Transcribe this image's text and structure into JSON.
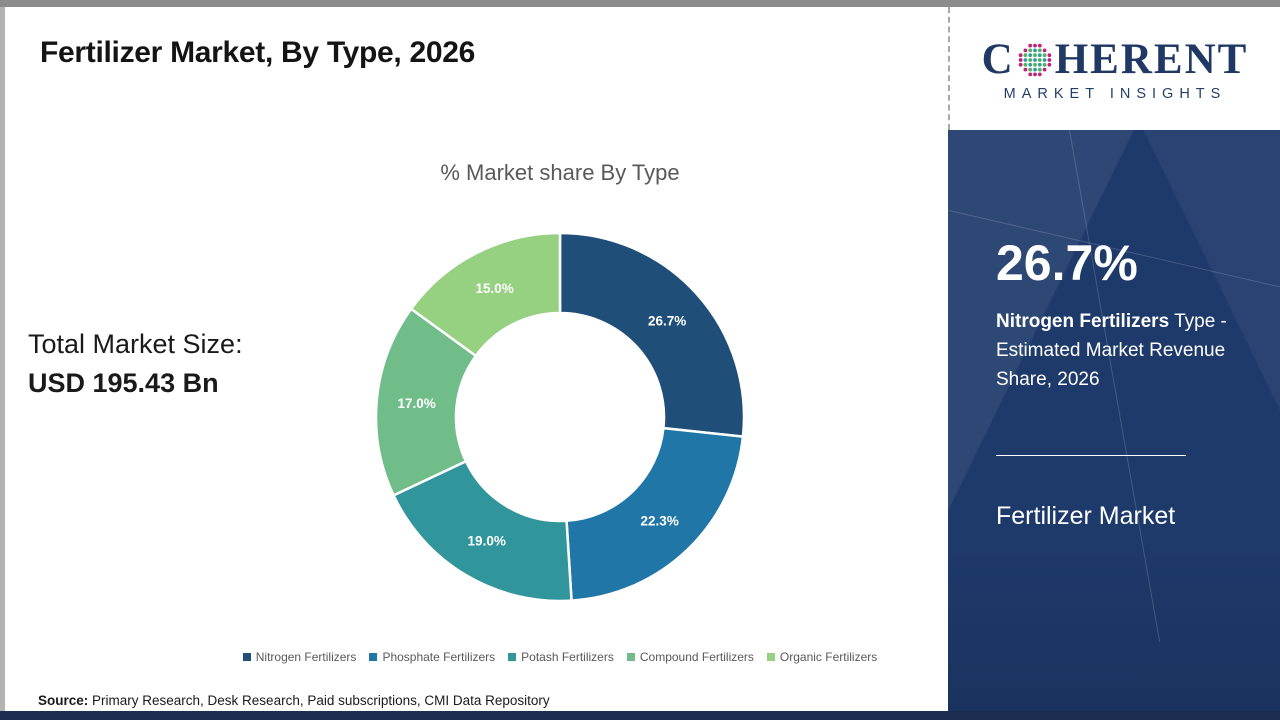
{
  "frame": {
    "top_bar_color": "#8C8C8C",
    "left_border_color": "#B3B3B3",
    "bottom_bar_color": "#1D2D50"
  },
  "header": {
    "title": "Fertilizer Market, By Type, 2026"
  },
  "logo": {
    "part1": "C",
    "part2": "HERENT",
    "subtitle": "MARKET INSIGHTS",
    "text_color": "#1F3864",
    "o_dot_colors": {
      "outer": "#C2217E",
      "teal": "#2E9FA0",
      "green": "#53B257"
    }
  },
  "left_panel": {
    "total_label": "Total Market Size:",
    "total_value": "USD 195.43 Bn"
  },
  "chart_data": {
    "type": "pie",
    "subtype": "donut",
    "title": "% Market share By Type",
    "categories": [
      "Nitrogen Fertilizers",
      "Phosphate Fertilizers",
      "Potash Fertilizers",
      "Compound Fertilizers",
      "Organic Fertilizers"
    ],
    "values": [
      26.7,
      22.3,
      19.0,
      17.0,
      15.0
    ],
    "labels": [
      "26.7%",
      "22.3%",
      "19.0%",
      "17.0%",
      "15.0%"
    ],
    "colors": [
      "#1F4E79",
      "#2076A7",
      "#31969C",
      "#71BD8A",
      "#96D181"
    ],
    "start_angle_deg": 0,
    "direction": "clockwise",
    "legend_position": "bottom",
    "label_color": "#FFFFFF"
  },
  "sidebar": {
    "background_color": "#1E3A6B",
    "highlight_value": "26.7%",
    "highlight_bold": "Nitrogen Fertilizers",
    "highlight_rest": " Type - Estimated Market Revenue Share, 2026",
    "market_name": "Fertilizer Market"
  },
  "footer": {
    "source_label": "Source:",
    "source_text": " Primary Research, Desk Research, Paid subscriptions, CMI Data Repository"
  }
}
